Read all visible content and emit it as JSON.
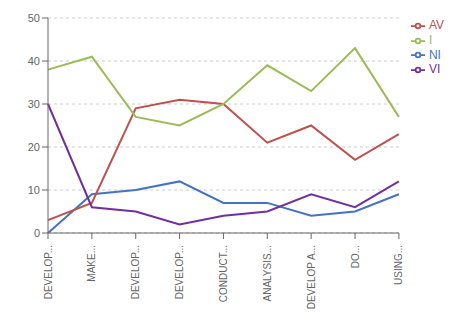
{
  "chart_data": {
    "type": "line",
    "categories": [
      "DEVELOP...",
      "MAKE...",
      "DEVELOP...",
      "DEVELOP...",
      "CONDUCT...",
      "ANALYSIS...",
      "DEVELOP A...",
      "DO...",
      "USING..."
    ],
    "series": [
      {
        "name": "NI",
        "color": "#4472C4",
        "values": [
          0,
          9,
          10,
          12,
          7,
          7,
          4,
          5,
          9
        ]
      },
      {
        "name": "AV",
        "color": "#C0504D",
        "values": [
          3,
          7,
          29,
          31,
          30,
          21,
          25,
          17,
          23
        ]
      },
      {
        "name": "I",
        "color": "#9BBB59",
        "values": [
          38,
          41,
          27,
          25,
          30,
          39,
          33,
          43,
          27
        ]
      },
      {
        "name": "VI",
        "color": "#7030A0",
        "values": [
          30,
          6,
          5,
          2,
          4,
          5,
          9,
          6,
          12
        ]
      }
    ],
    "ylim": [
      0,
      50
    ],
    "yticks": [
      0,
      10,
      20,
      30,
      40,
      50
    ],
    "grid": true,
    "legend": "right"
  }
}
